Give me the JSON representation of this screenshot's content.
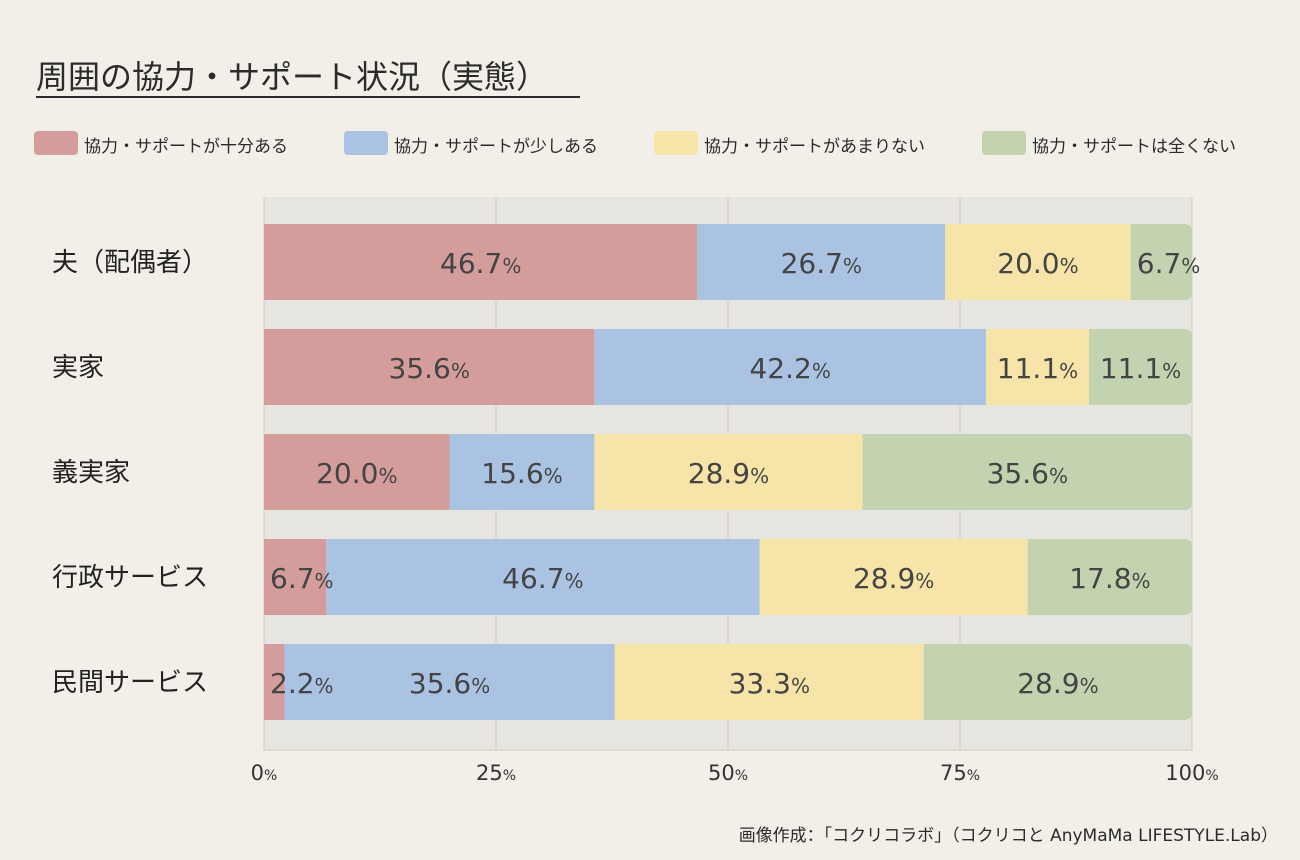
{
  "chart_data": {
    "type": "bar",
    "orientation": "horizontal",
    "stacked": true,
    "title": "周囲の協力・サポート状況（実態）",
    "categories": [
      "夫（配偶者）",
      "実家",
      "義実家",
      "行政サービス",
      "民間サービス"
    ],
    "series": [
      {
        "name": "協力・サポートが十分ある",
        "color": "#d49d9c",
        "values": [
          46.7,
          35.6,
          20.0,
          6.7,
          2.2
        ]
      },
      {
        "name": "協力・サポートが少しある",
        "color": "#aac3e2",
        "values": [
          26.7,
          42.2,
          15.6,
          46.7,
          35.6
        ]
      },
      {
        "name": "協力・サポートがあまりない",
        "color": "#f6e4a8",
        "values": [
          20.0,
          11.1,
          28.9,
          28.9,
          33.3
        ]
      },
      {
        "name": "協力・サポートは全くない",
        "color": "#c3d3af",
        "values": [
          6.7,
          11.1,
          35.6,
          17.8,
          28.9
        ]
      }
    ],
    "value_suffix": "%",
    "xlim": [
      0,
      100
    ],
    "xticks": [
      0,
      25,
      50,
      75,
      100
    ],
    "grid": true,
    "legend": "top"
  },
  "credit": "画像作成：「コクリコラボ」（コクリコと AnyMaMa LIFESTYLE.Lab）"
}
